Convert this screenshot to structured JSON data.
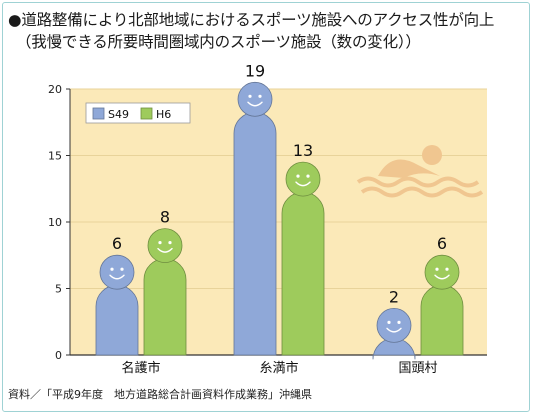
{
  "title_line1": "●道路整備により北部地域におけるスポーツ施設へのアクセス性が向上",
  "title_line2": "（我慢できる所要時間圏域内のスポーツ施設（数の変化））",
  "source": "資料／「平成9年度　地方道路総合計画資料作成業務」沖縄県",
  "chart_data": {
    "type": "bar",
    "categories": [
      "名護市",
      "糸満市",
      "国頭村"
    ],
    "series": [
      {
        "name": "S49",
        "values": [
          6,
          19,
          2
        ],
        "color": "#8fa8d8"
      },
      {
        "name": "H6",
        "values": [
          8,
          13,
          6
        ],
        "color": "#9ecb5c"
      }
    ],
    "y_ticks": [
      0,
      5,
      10,
      15,
      20
    ],
    "ylim": [
      0,
      20
    ],
    "legend_position": "top-left",
    "plot_background": "#fbe9b8",
    "decoration": "swimmer-icon"
  }
}
